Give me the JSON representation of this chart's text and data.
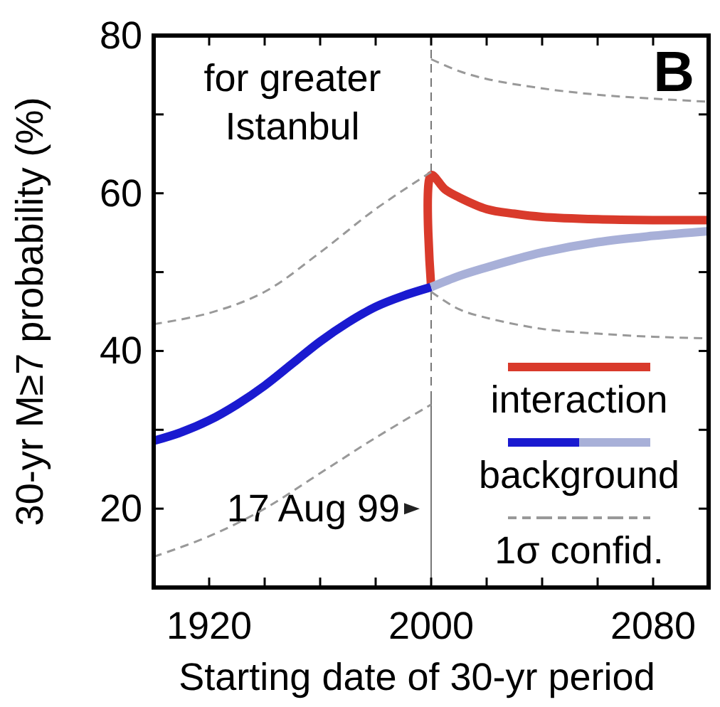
{
  "chart_data": {
    "type": "line",
    "xlabel": "Starting date of 30-yr period",
    "ylabel": "30-yr M≥7 probability (%)",
    "xlim": [
      1900,
      2100
    ],
    "ylim": [
      10,
      80
    ],
    "xticks": [
      1920,
      {
        "value": 1940,
        "label": null
      },
      {
        "value": 1960,
        "label": null
      },
      {
        "value": 1980,
        "label": null
      },
      2000,
      {
        "value": 2020,
        "label": null
      },
      {
        "value": 2040,
        "label": null
      },
      {
        "value": 2060,
        "label": null
      },
      2080
    ],
    "yticks": [
      20,
      {
        "value": 30,
        "label": null
      },
      40,
      {
        "value": 50,
        "label": null
      },
      60,
      {
        "value": 70,
        "label": null
      },
      80
    ],
    "grid": false,
    "marker": "none",
    "legend": "bottom right",
    "annotations": [
      "for greater Istanbul",
      "B"
    ],
    "ref_lines": [
      {
        "axis": "x",
        "value": 2000,
        "label": "17 Aug 99",
        "color": "#777777",
        "line_style": "dashed"
      }
    ],
    "series": [
      {
        "name": "interaction",
        "color": "#d93a2b",
        "x": [
          2000,
          2000,
          2005,
          2010,
          2020,
          2030,
          2040,
          2060,
          2080,
          2100
        ],
        "values": [
          48.1,
          62.3,
          60.5,
          59.5,
          58,
          57.4,
          57,
          56.7,
          56.6,
          56.6
        ]
      },
      {
        "name": "background",
        "color": "#1a1ad0",
        "x": [
          1900,
          1910,
          1920,
          1930,
          1940,
          1950,
          1960,
          1970,
          1980,
          1990,
          2000
        ],
        "values": [
          28.6,
          29.7,
          31.2,
          33.2,
          35.6,
          38.4,
          41.2,
          43.6,
          45.6,
          47,
          48.1
        ]
      },
      {
        "color": "#a8b0d8",
        "x": [
          2000,
          2010,
          2020,
          2030,
          2040,
          2060,
          2080,
          2100
        ],
        "values": [
          48.1,
          49.5,
          50.6,
          51.6,
          52.5,
          53.8,
          54.6,
          55.2
        ]
      },
      {
        "name": "1σ confid.",
        "color": "#999999",
        "line_style": "dashed",
        "x": [
          1900,
          1920,
          1940,
          1960,
          1980,
          2000
        ],
        "values": [
          43.4,
          44.8,
          47.5,
          52.5,
          58,
          62.7
        ]
      },
      {
        "color": "#999999",
        "line_style": "dashed",
        "x": [
          1900,
          1920,
          1940,
          1960,
          1980,
          2000
        ],
        "values": [
          13.9,
          16.5,
          20,
          24.5,
          29,
          33.2
        ]
      },
      {
        "color": "#999999",
        "line_style": "dashed",
        "x": [
          2000,
          2010,
          2020,
          2040,
          2060,
          2080,
          2100
        ],
        "values": [
          77,
          75.5,
          74.5,
          73.3,
          72.5,
          72,
          71.6
        ]
      },
      {
        "color": "#999999",
        "line_style": "dashed",
        "x": [
          2000,
          2010,
          2020,
          2040,
          2060,
          2080,
          2100
        ],
        "values": [
          47.5,
          45.3,
          44.2,
          42.8,
          42.2,
          41.8,
          41.6
        ]
      }
    ]
  }
}
